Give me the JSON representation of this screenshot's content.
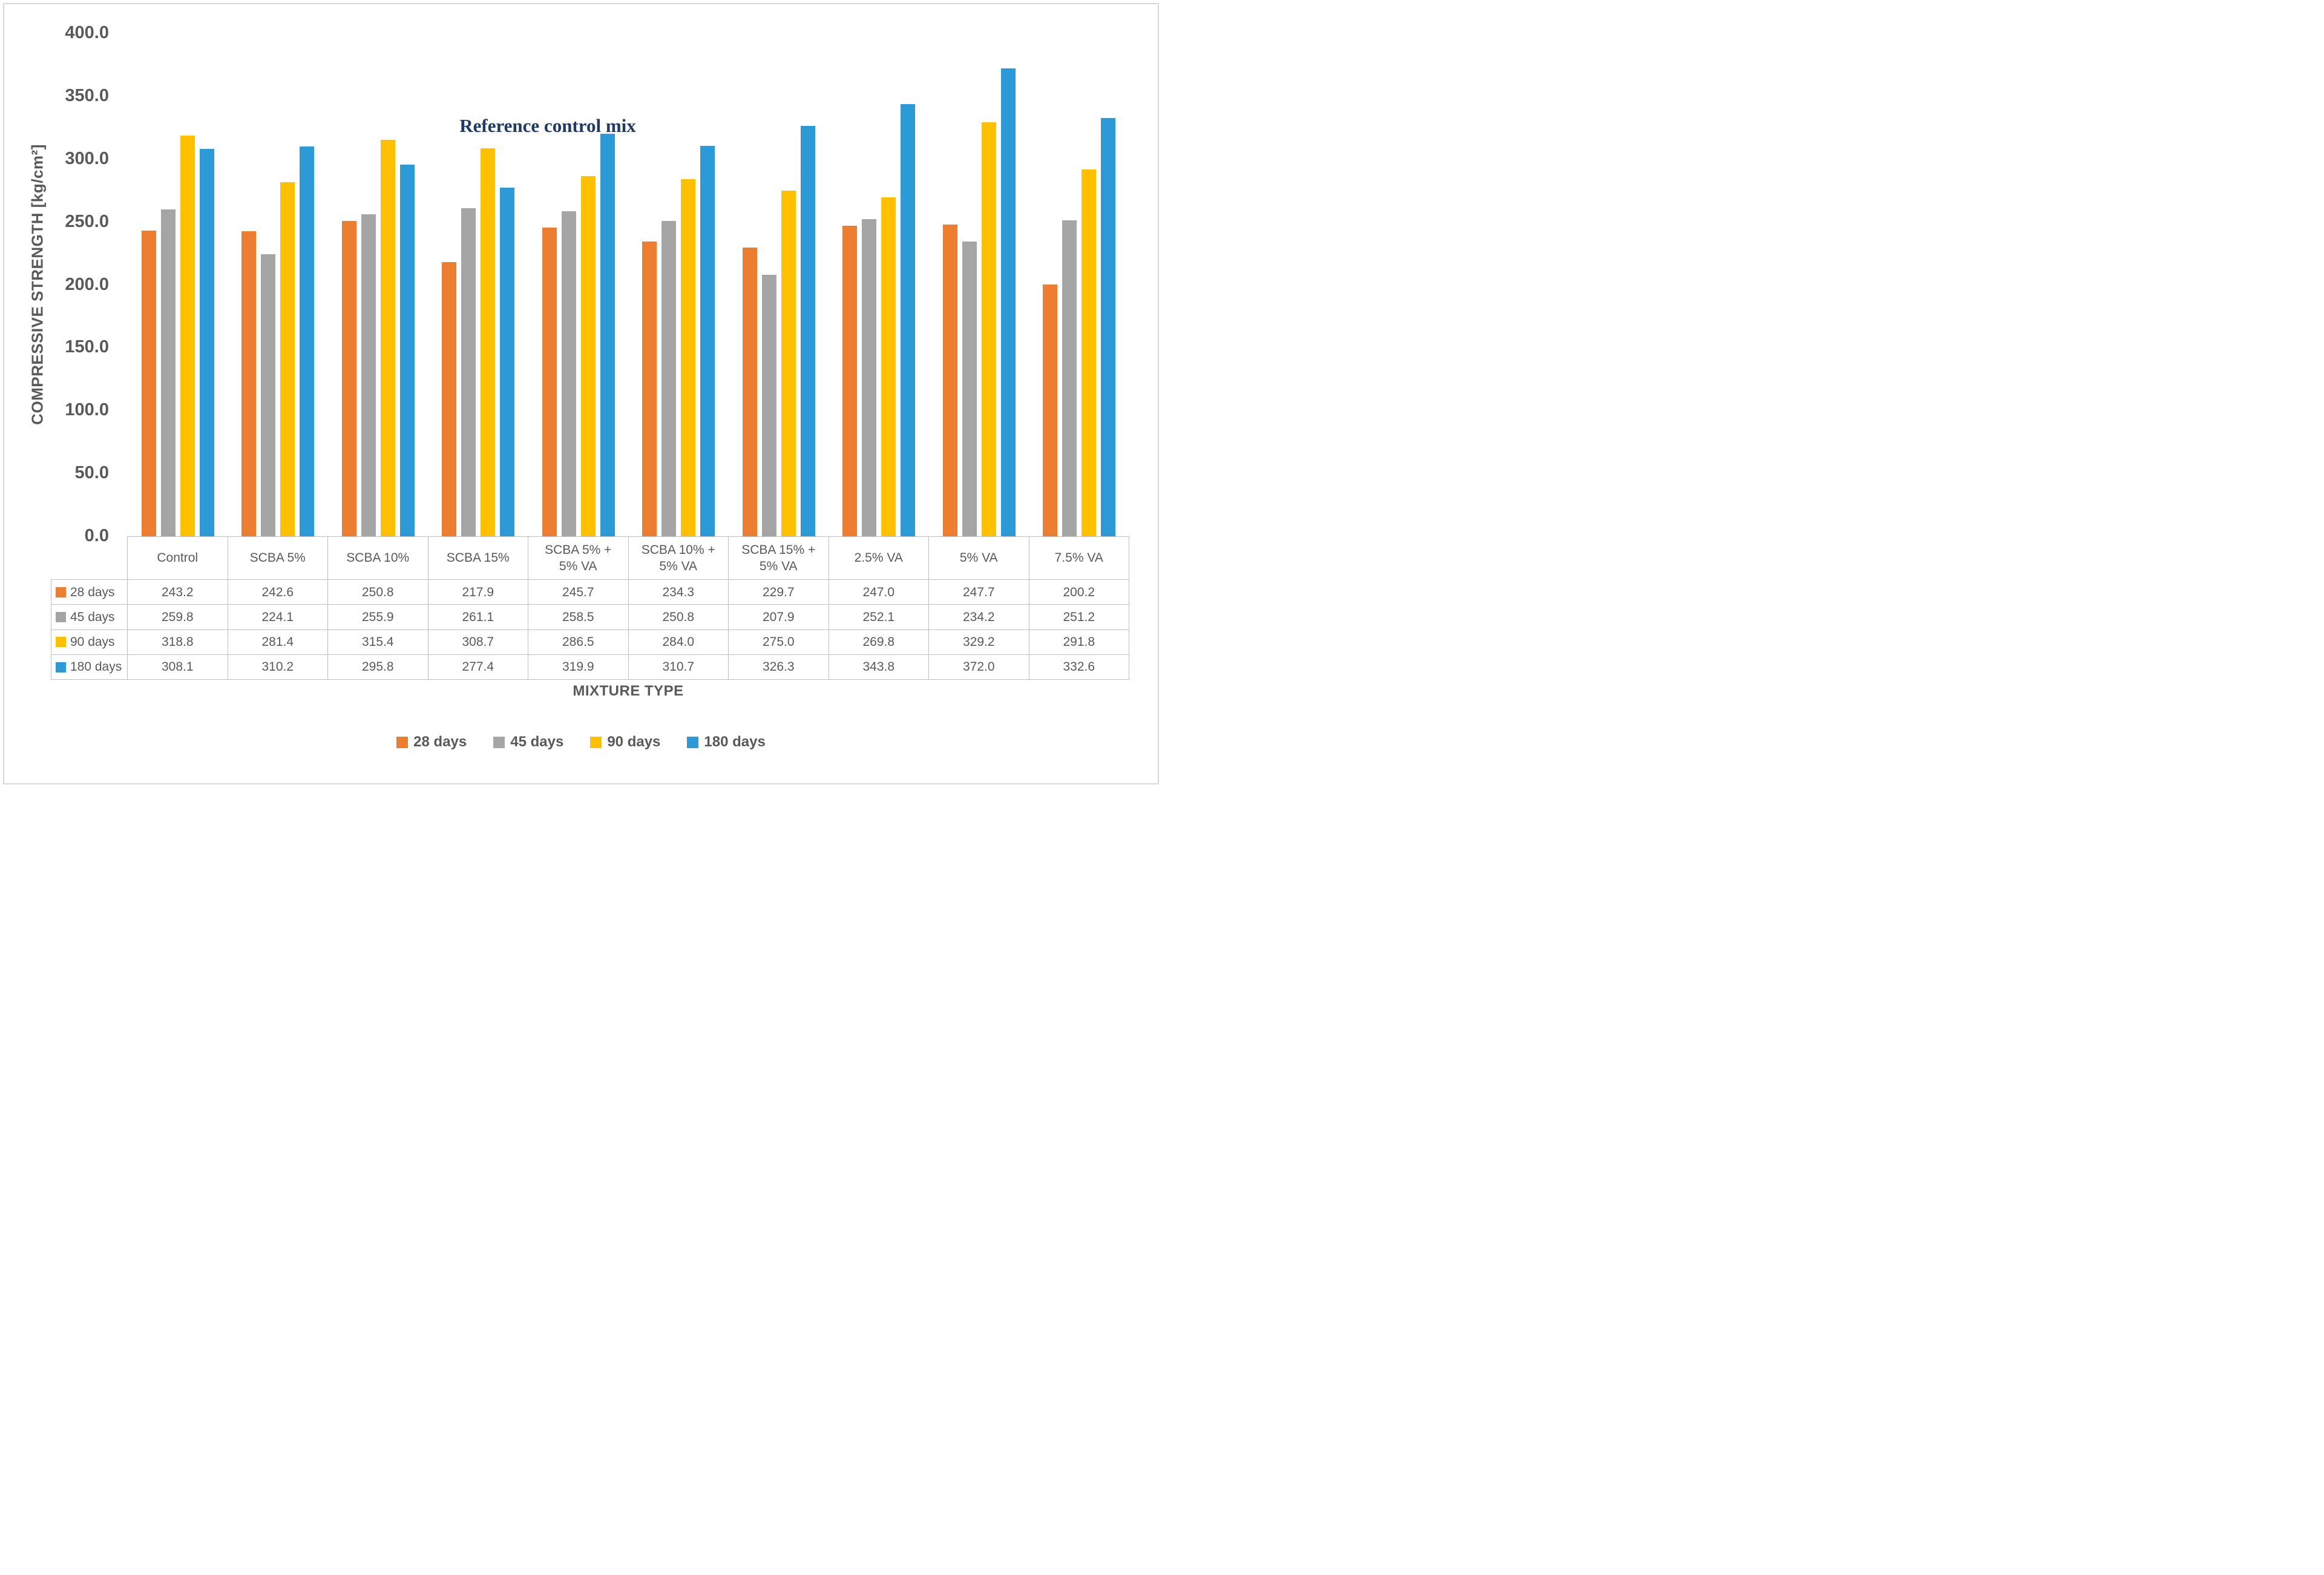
{
  "annotation": "Reference control mix",
  "y_axis": {
    "title": "COMPRESSIVE STRENGTH [kg/cm²]",
    "tick_labels": [
      "400.0",
      "350.0",
      "300.0",
      "250.0",
      "200.0",
      "150.0",
      "100.0",
      "50.0",
      "0.0"
    ]
  },
  "x_axis": {
    "title": "MIXTURE TYPE"
  },
  "legend": {
    "labels": [
      "28 days",
      "45 days",
      "90 days",
      "180 days"
    ]
  },
  "colors": {
    "series_28_days": "#ED7D31",
    "series_45_days": "#A5A5A5",
    "series_90_days": "#FFC000",
    "series_180_days": "#2B9AD6",
    "text": "#595959",
    "grid": "#BFBFBF",
    "frame": "#D9D9D9",
    "annotation": "#1F3A67"
  },
  "chart_data": {
    "type": "bar",
    "title": "",
    "xlabel": "MIXTURE TYPE",
    "ylabel": "COMPRESSIVE STRENGTH [kg/cm²]",
    "ylim": [
      0,
      400
    ],
    "ytick_step": 50,
    "grid": false,
    "legend_position": "bottom",
    "data_table_shown": true,
    "categories": [
      "Control",
      "SCBA 5%",
      "SCBA 10%",
      "SCBA 15%",
      "SCBA 5% + 5% VA",
      "SCBA 10% + 5% VA",
      "SCBA 15% + 5% VA",
      "2.5% VA",
      "5% VA",
      "7.5% VA"
    ],
    "series": [
      {
        "name": "28 days",
        "color": "#ED7D31",
        "values": [
          243.2,
          242.6,
          250.8,
          217.9,
          245.7,
          234.3,
          229.7,
          247.0,
          247.7,
          200.2
        ]
      },
      {
        "name": "45 days",
        "color": "#A5A5A5",
        "values": [
          259.8,
          224.1,
          255.9,
          261.1,
          258.5,
          250.8,
          207.9,
          252.1,
          234.2,
          251.2
        ]
      },
      {
        "name": "90 days",
        "color": "#FFC000",
        "values": [
          318.8,
          281.4,
          315.4,
          308.7,
          286.5,
          284.0,
          275.0,
          269.8,
          329.2,
          291.8
        ]
      },
      {
        "name": "180 days",
        "color": "#2B9AD6",
        "values": [
          308.1,
          310.2,
          295.8,
          277.4,
          319.9,
          310.7,
          326.3,
          343.8,
          372.0,
          332.6
        ]
      }
    ],
    "annotation": {
      "text": "Reference control mix"
    }
  }
}
